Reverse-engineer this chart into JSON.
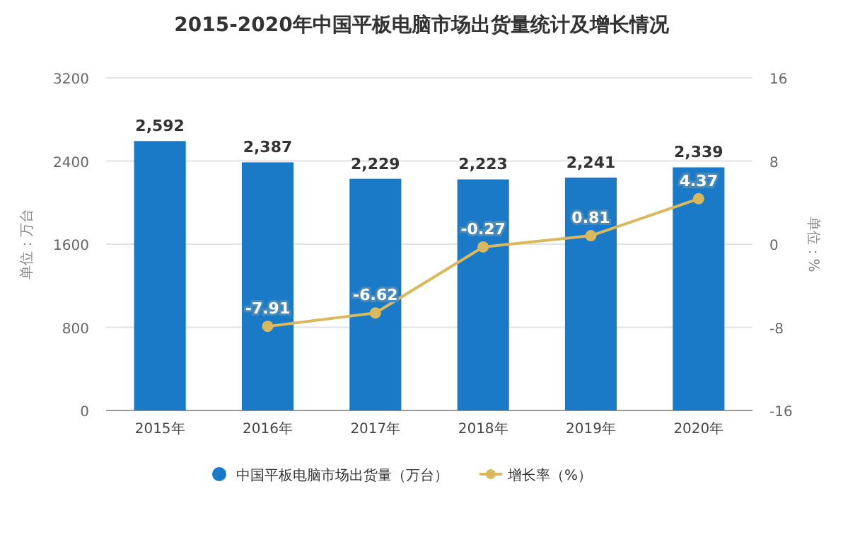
{
  "chart_data": {
    "type": "bar",
    "title": "2015-2020年中国平板电脑市场出货量统计及增长情况",
    "categories": [
      "2015年",
      "2016年",
      "2017年",
      "2018年",
      "2019年",
      "2020年"
    ],
    "series": [
      {
        "name": "中国平板电脑市场出货量（万台）",
        "color": "#1a7ac7",
        "values": [
          2592,
          2387,
          2229,
          2223,
          2241,
          2339
        ],
        "value_labels": [
          "2,592",
          "2,387",
          "2,229",
          "2,223",
          "2,241",
          "2,339"
        ]
      },
      {
        "name": "增长率（%）",
        "type": "line",
        "axis": "y2",
        "color": "#d9b95c",
        "values": [
          null,
          -7.91,
          -6.62,
          -0.27,
          0.81,
          4.37
        ],
        "value_labels": [
          null,
          "-7.91",
          "-6.62",
          "-0.27",
          "0.81",
          "4.37"
        ]
      }
    ],
    "ylabel": "单位：万台",
    "y2label": "单位：%",
    "ylim": [
      0,
      3200
    ],
    "yticks": [
      0,
      800,
      1600,
      2400,
      3200
    ],
    "y2lim": [
      -16,
      16
    ],
    "y2ticks": [
      -16,
      -8,
      0,
      8,
      16
    ],
    "grid": "y",
    "legend": "bottom",
    "marker": "circle"
  }
}
